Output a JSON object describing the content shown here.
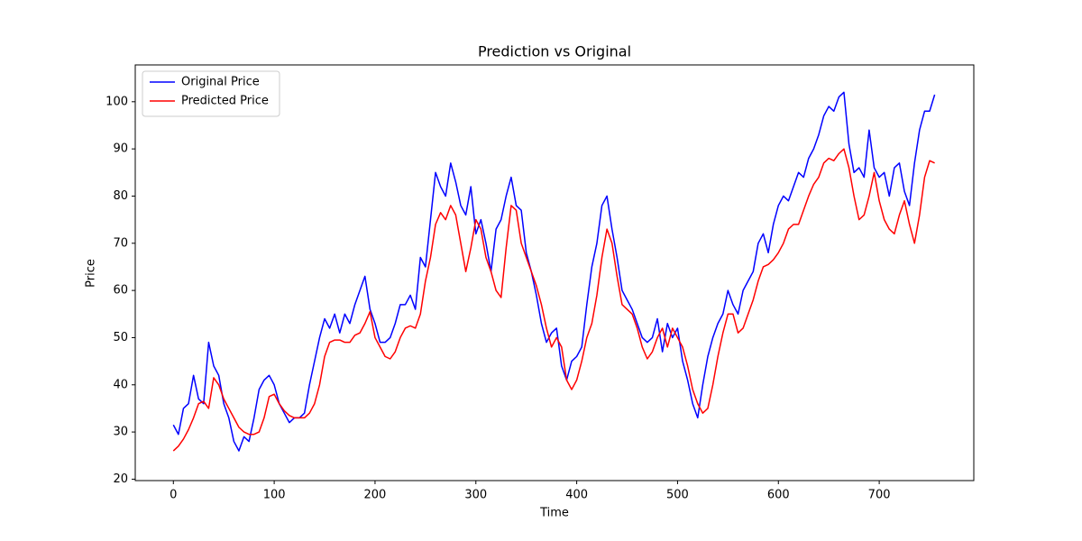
{
  "chart_data": {
    "type": "line",
    "title": "Prediction vs Original",
    "x_label": "Time",
    "y_label": "Price",
    "x": [
      0,
      5,
      10,
      15,
      20,
      25,
      30,
      35,
      40,
      45,
      50,
      55,
      60,
      65,
      70,
      75,
      80,
      85,
      90,
      95,
      100,
      105,
      110,
      115,
      120,
      125,
      130,
      135,
      140,
      145,
      150,
      155,
      160,
      165,
      170,
      175,
      180,
      185,
      190,
      195,
      200,
      205,
      210,
      215,
      220,
      225,
      230,
      235,
      240,
      245,
      250,
      255,
      260,
      265,
      270,
      275,
      280,
      285,
      290,
      295,
      300,
      305,
      310,
      315,
      320,
      325,
      330,
      335,
      340,
      345,
      350,
      355,
      360,
      365,
      370,
      375,
      380,
      385,
      390,
      395,
      400,
      405,
      410,
      415,
      420,
      425,
      430,
      435,
      440,
      445,
      450,
      455,
      460,
      465,
      470,
      475,
      480,
      485,
      490,
      495,
      500,
      505,
      510,
      515,
      520,
      525,
      530,
      535,
      540,
      545,
      550,
      555,
      560,
      565,
      570,
      575,
      580,
      585,
      590,
      595,
      600,
      605,
      610,
      615,
      620,
      625,
      630,
      635,
      640,
      645,
      650,
      655,
      660,
      665,
      670,
      675,
      680,
      685,
      690,
      695,
      700,
      705,
      710,
      715,
      720,
      725,
      730,
      735,
      740,
      745,
      750,
      755
    ],
    "series": [
      {
        "name": "Original Price",
        "color": "#0000ff",
        "values": [
          31.5,
          29.5,
          35,
          36,
          42,
          37,
          36,
          49,
          44,
          42,
          36,
          33,
          28,
          26,
          29,
          28,
          33,
          39,
          41,
          42,
          40,
          36,
          34,
          32,
          33,
          33,
          34,
          40,
          45,
          50,
          54,
          52,
          55,
          51,
          55,
          53,
          57,
          60,
          63,
          56,
          53,
          49,
          49,
          50,
          53,
          57,
          57,
          59,
          56,
          67,
          65,
          75,
          85,
          82,
          80,
          87,
          83,
          78,
          76,
          82,
          72,
          75,
          70,
          64,
          73,
          75,
          80,
          84,
          78,
          77,
          68,
          64,
          59,
          53,
          49,
          51,
          52,
          44,
          41,
          45,
          46,
          48,
          57,
          65,
          70,
          78,
          80,
          73,
          67,
          60,
          58,
          56,
          53,
          50,
          49,
          50,
          54,
          47,
          53,
          50,
          52,
          45,
          41,
          36,
          33,
          40,
          46,
          50,
          53,
          55,
          60,
          57,
          55,
          60,
          62,
          64,
          70,
          72,
          68,
          74,
          78,
          80,
          79,
          82,
          85,
          84,
          88,
          90,
          93,
          97,
          99,
          98,
          101,
          102,
          91,
          85,
          86,
          84,
          94,
          86,
          84,
          85,
          80,
          86,
          87,
          81,
          78,
          87,
          94,
          98,
          98,
          101.5
        ]
      },
      {
        "name": "Predicted Price",
        "color": "#ff0000",
        "values": [
          26,
          27,
          28.5,
          30.5,
          33,
          36,
          36.5,
          35,
          41.5,
          40,
          37,
          35,
          33,
          31,
          30,
          29.5,
          29.5,
          30,
          33,
          37.5,
          38,
          36,
          34.5,
          33.5,
          33,
          33,
          33,
          34,
          36,
          40,
          46,
          49,
          49.5,
          49.5,
          49,
          49,
          50.5,
          51,
          53,
          55.5,
          50,
          48,
          46,
          45.5,
          47,
          50,
          52,
          52.5,
          52,
          55,
          62,
          67,
          74,
          76.5,
          75,
          78,
          76,
          70,
          64,
          69,
          75,
          73,
          67,
          64,
          60,
          58.5,
          69,
          78,
          77,
          70,
          67,
          64,
          61,
          57,
          52,
          48,
          50,
          48,
          41,
          39,
          41,
          45,
          50,
          53,
          59,
          67,
          73,
          70,
          63,
          57,
          56,
          55,
          52,
          48,
          45.5,
          47,
          50,
          52,
          48,
          52,
          50,
          48,
          44,
          39,
          36,
          34,
          35,
          40,
          46,
          51,
          55,
          55,
          51,
          52,
          55,
          58,
          62,
          65,
          65.5,
          66.5,
          68,
          70,
          73,
          74,
          74,
          77,
          80,
          82.5,
          84,
          87,
          88,
          87.5,
          89,
          90,
          86,
          80,
          75,
          76,
          80,
          85,
          79,
          75,
          73,
          72,
          76,
          79,
          74,
          70,
          76,
          84,
          87.5,
          87
        ]
      }
    ],
    "xlim": [
      -37.8,
      793.8
    ],
    "xticks": [
      0,
      100,
      200,
      300,
      400,
      500,
      600,
      700
    ],
    "ylim": [
      19.7,
      107.8
    ],
    "yticks": [
      20,
      30,
      40,
      50,
      60,
      70,
      80,
      90,
      100
    ],
    "legend": "upper left",
    "grid": false
  }
}
